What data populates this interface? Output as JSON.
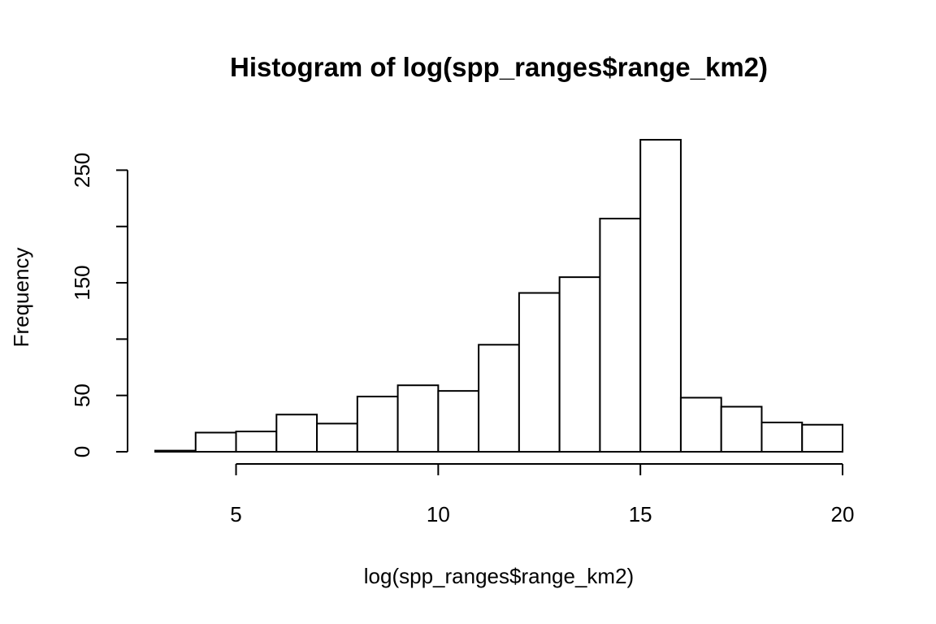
{
  "chart_data": {
    "type": "bar",
    "title": "Histogram of log(spp_ranges$range_km2)",
    "xlabel": "log(spp_ranges$range_km2)",
    "ylabel": "Frequency",
    "bin_edges": [
      3,
      4,
      5,
      6,
      7,
      8,
      9,
      10,
      11,
      12,
      13,
      14,
      15,
      16,
      17,
      18,
      19,
      20
    ],
    "values": [
      1,
      17,
      18,
      33,
      25,
      49,
      59,
      54,
      95,
      141,
      155,
      207,
      277,
      48,
      40,
      26,
      24
    ],
    "xlim": [
      3,
      20
    ],
    "ylim": [
      0,
      277
    ],
    "x_ticks": [
      5,
      10,
      15,
      20
    ],
    "x_tick_labels": [
      "5",
      "10",
      "15",
      "20"
    ],
    "y_ticks": [
      0,
      50,
      100,
      150,
      200,
      250
    ],
    "y_tick_labels": [
      "0",
      "50",
      "",
      "150",
      "",
      "250"
    ],
    "grid": false,
    "legend": "none"
  }
}
